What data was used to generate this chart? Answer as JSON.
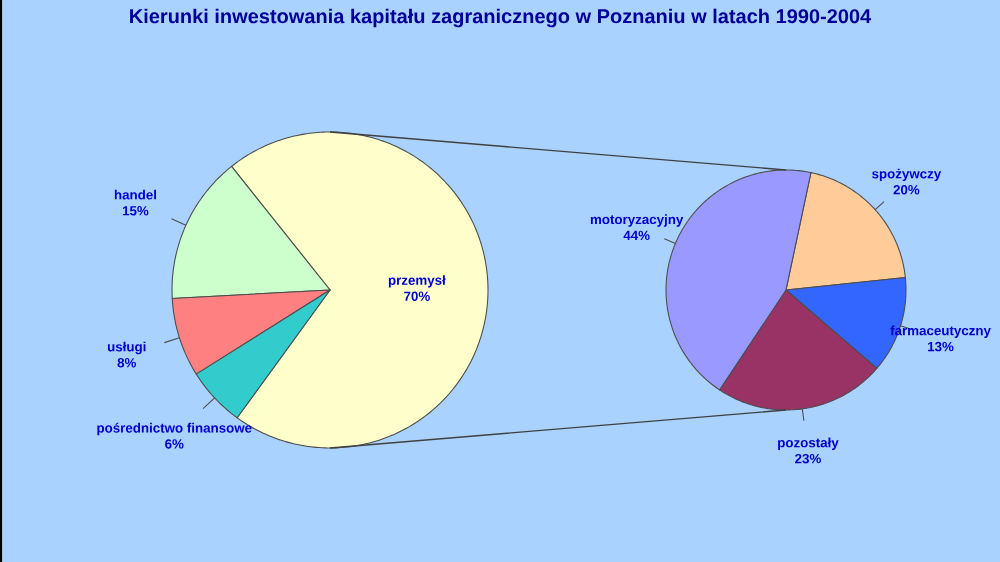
{
  "chart_data": [
    {
      "type": "pie",
      "title": "Kierunki inwestowania kapitału zagranicznego w Poznaniu w latach 1990-2004",
      "categories": [
        "przemysł",
        "handel",
        "usługi",
        "pośrednictwo finansowe"
      ],
      "values": [
        70,
        15,
        8,
        6
      ],
      "colors": [
        "#ffffcc",
        "#ccffcc",
        "#ff8080",
        "#33cccc"
      ],
      "value_labels": [
        "70%",
        "15%",
        "8%",
        "6%"
      ]
    },
    {
      "type": "pie",
      "categories": [
        "spożywczy",
        "farmaceutyczny",
        "pozostały",
        "motoryzacyjny"
      ],
      "values": [
        20,
        13,
        23,
        44
      ],
      "colors": [
        "#ffcc99",
        "#3366ff",
        "#993366",
        "#9999ff"
      ],
      "value_labels": [
        "20%",
        "13%",
        "23%",
        "44%"
      ]
    }
  ]
}
